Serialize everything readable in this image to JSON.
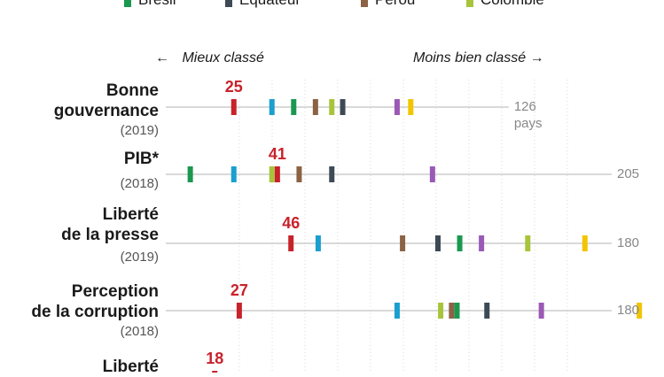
{
  "legend": [
    {
      "name": "Brésil",
      "color": "#1a9850"
    },
    {
      "name": "Equateur",
      "color": "#3d4a55"
    },
    {
      "name": "Pérou",
      "color": "#8c6244"
    },
    {
      "name": "Colombie",
      "color": "#a7c43a"
    }
  ],
  "direction": {
    "left": "Mieux classé",
    "right": "Moins bien classé"
  },
  "chart_data": {
    "type": "scatter",
    "rank_axis": "rang (1 = mieux classé)",
    "highlight_color": "#c8222b",
    "series_colors": {
      "Brésil": "#1a9850",
      "Equateur": "#3d4a55",
      "Pérou": "#8c6244",
      "Colombie": "#a7c43a",
      "cyan": "#1a9fcf",
      "violet": "#9b59b6",
      "jaune": "#f2c500"
    },
    "categories": [
      {
        "label": [
          "Bonne",
          "gouvernance"
        ],
        "year": "(2019)",
        "highlight": 25,
        "total": 126,
        "total_label": [
          "126",
          "pays"
        ],
        "marks": [
          {
            "series": "cyan",
            "rank": 39
          },
          {
            "series": "Brésil",
            "rank": 47
          },
          {
            "series": "Pérou",
            "rank": 55
          },
          {
            "series": "Colombie",
            "rank": 61
          },
          {
            "series": "Equateur",
            "rank": 65
          },
          {
            "series": "violet",
            "rank": 85
          },
          {
            "series": "jaune",
            "rank": 90
          }
        ]
      },
      {
        "label": [
          "PIB*"
        ],
        "year": "(2018)",
        "highlight": 41,
        "total": 205,
        "total_label": [
          "205"
        ],
        "marks": [
          {
            "series": "Brésil",
            "rank": 9
          },
          {
            "series": "cyan",
            "rank": 25
          },
          {
            "series": "Colombie",
            "rank": 39
          },
          {
            "series": "Pérou",
            "rank": 49
          },
          {
            "series": "Equateur",
            "rank": 61
          },
          {
            "series": "violet",
            "rank": 98
          }
        ]
      },
      {
        "label": [
          "Liberté",
          "de la presse"
        ],
        "year": "(2019)",
        "highlight": 46,
        "total": 180,
        "total_label": [
          "180"
        ],
        "marks": [
          {
            "series": "cyan",
            "rank": 56
          },
          {
            "series": "Pérou",
            "rank": 87
          },
          {
            "series": "Equateur",
            "rank": 100
          },
          {
            "series": "Brésil",
            "rank": 108
          },
          {
            "series": "violet",
            "rank": 116
          },
          {
            "series": "Colombie",
            "rank": 133
          },
          {
            "series": "jaune",
            "rank": 154
          }
        ]
      },
      {
        "label": [
          "Perception",
          "de la corruption"
        ],
        "year": "(2018)",
        "highlight": 27,
        "total": 180,
        "total_label": [
          "180"
        ],
        "marks": [
          {
            "series": "cyan",
            "rank": 85
          },
          {
            "series": "Colombie",
            "rank": 101
          },
          {
            "series": "Pérou",
            "rank": 105
          },
          {
            "series": "Brésil",
            "rank": 107
          },
          {
            "series": "Equateur",
            "rank": 118
          },
          {
            "series": "violet",
            "rank": 138
          },
          {
            "series": "jaune",
            "rank": 174
          }
        ]
      },
      {
        "label": [
          "Liberté"
        ],
        "year": "",
        "highlight": 18,
        "total": null,
        "total_label": [],
        "marks": []
      }
    ]
  }
}
